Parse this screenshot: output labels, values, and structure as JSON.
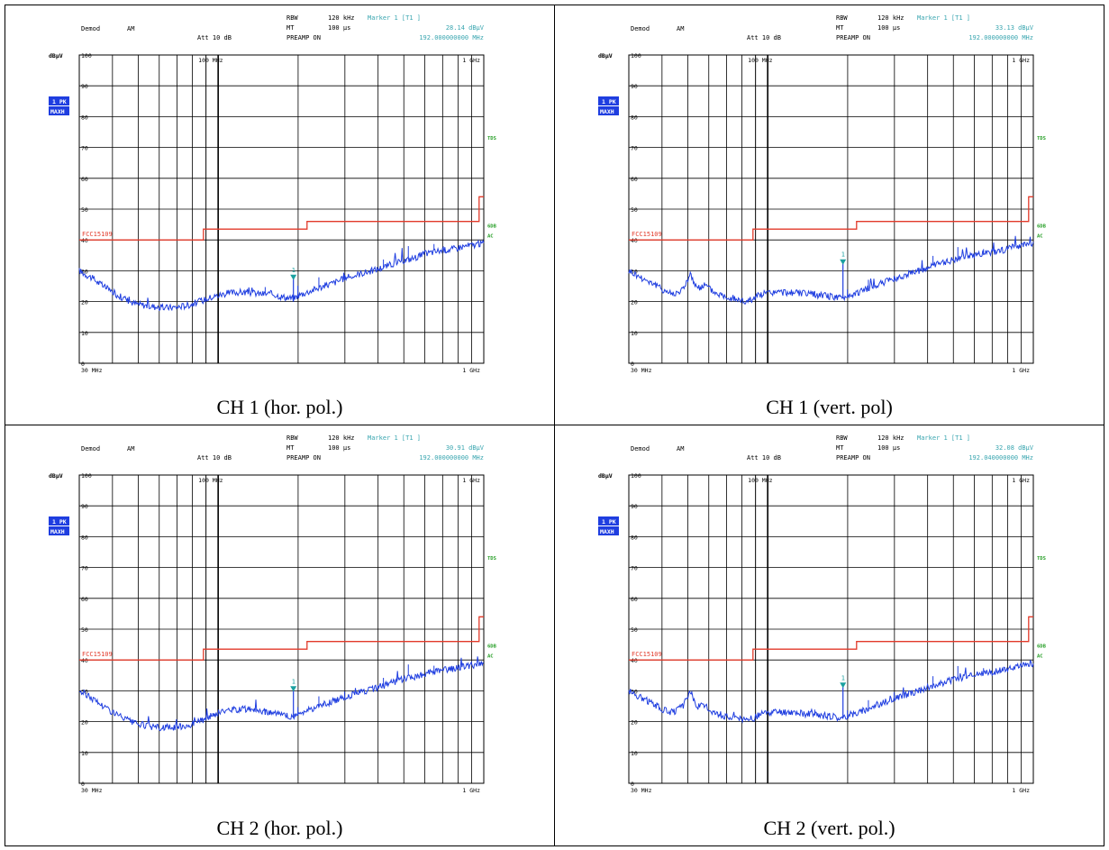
{
  "panels": [
    {
      "caption": "CH 1 (hor. pol.)",
      "header": {
        "demod": "Demod",
        "demod_val": "AM",
        "att": "Att 10 dB",
        "rbw": "RBW",
        "rbw_val": "120 kHz",
        "mt": "MT",
        "mt_val": "100 µs",
        "preamp": "PREAMP ON",
        "marker_title": "Marker 1 [T1 ]",
        "marker_level": "28.14 dBµV",
        "marker_freq": "192.000000000 MHz"
      },
      "unit": "dBµV",
      "trace_badge": "1 PK",
      "trace_mode": "MAXH",
      "limit_label": "FCC15109",
      "side_labels": [
        "TDS",
        "6DB",
        "AC"
      ],
      "x_start": "30 MHz",
      "x_end": "1 GHz",
      "x_mid_top": "100 MHz",
      "x_end_top": "1 GHz",
      "marker_label": "1"
    },
    {
      "caption": "CH 1 (vert. pol)",
      "header": {
        "demod": "Demod",
        "demod_val": "AM",
        "att": "Att 10 dB",
        "rbw": "RBW",
        "rbw_val": "120 kHz",
        "mt": "MT",
        "mt_val": "100 µs",
        "preamp": "PREAMP ON",
        "marker_title": "Marker 1 [T1 ]",
        "marker_level": "33.13 dBµV",
        "marker_freq": "192.000000000 MHz"
      },
      "unit": "dBµV",
      "trace_badge": "1 PK",
      "trace_mode": "MAXH",
      "limit_label": "FCC15109",
      "side_labels": [
        "TDS",
        "6DB",
        "AC"
      ],
      "x_start": "30 MHz",
      "x_end": "1 GHz",
      "x_mid_top": "100 MHz",
      "x_end_top": "1 GHz",
      "marker_label": "1"
    },
    {
      "caption": "CH 2 (hor. pol.)",
      "header": {
        "demod": "Demod",
        "demod_val": "AM",
        "att": "Att 10 dB",
        "rbw": "RBW",
        "rbw_val": "120 kHz",
        "mt": "MT",
        "mt_val": "100 µs",
        "preamp": "PREAMP ON",
        "marker_title": "Marker 1 [T1 ]",
        "marker_level": "30.91 dBµV",
        "marker_freq": "192.000000000 MHz"
      },
      "unit": "dBµV",
      "trace_badge": "1 PK",
      "trace_mode": "MAXH",
      "limit_label": "FCC15109",
      "side_labels": [
        "TDS",
        "6DB",
        "AC"
      ],
      "x_start": "30 MHz",
      "x_end": "1 GHz",
      "x_mid_top": "100 MHz",
      "x_end_top": "1 GHz",
      "marker_label": "1"
    },
    {
      "caption": "CH 2 (vert. pol.)",
      "header": {
        "demod": "Demod",
        "demod_val": "AM",
        "att": "Att 10 dB",
        "rbw": "RBW",
        "rbw_val": "120 kHz",
        "mt": "MT",
        "mt_val": "100 µs",
        "preamp": "PREAMP ON",
        "marker_title": "Marker 1 [T1 ]",
        "marker_level": "32.08 dBµV",
        "marker_freq": "192.040000000 MHz"
      },
      "unit": "dBµV",
      "trace_badge": "1 PK",
      "trace_mode": "MAXH",
      "limit_label": "FCC15109",
      "side_labels": [
        "TDS",
        "6DB",
        "AC"
      ],
      "x_start": "30 MHz",
      "x_end": "1 GHz",
      "x_mid_top": "100 MHz",
      "x_end_top": "1 GHz",
      "marker_label": "1"
    }
  ],
  "colors": {
    "trace": "#1f3ee0",
    "limit": "#e23a2a",
    "marker": "#1aa0a0",
    "header_value": "#3aa6b0",
    "side": "#2aa02a",
    "badge_bg": "#1f3ee0",
    "grid": "#000000"
  },
  "chart_data": [
    {
      "type": "line",
      "x_scale": "log",
      "xlim": [
        30,
        1000
      ],
      "ylim": [
        0,
        100
      ],
      "y_ticks": [
        0,
        10,
        20,
        30,
        40,
        50,
        60,
        70,
        80,
        90,
        100
      ],
      "limit_line": {
        "name": "FCC15109",
        "x": [
          30,
          88,
          88,
          216,
          216,
          960,
          960,
          1000
        ],
        "y": [
          40,
          40,
          43.5,
          43.5,
          46,
          46,
          54,
          54
        ]
      },
      "marker": {
        "x": 192,
        "y": 28.14
      },
      "series": [
        {
          "name": "1 PK MAXH",
          "x": [
            30,
            33,
            37,
            42,
            48,
            55,
            62,
            70,
            78,
            88,
            95,
            105,
            115,
            130,
            145,
            160,
            175,
            192,
            200,
            215,
            240,
            270,
            300,
            340,
            380,
            430,
            480,
            540,
            600,
            680,
            760,
            850,
            930,
            1000
          ],
          "y": [
            30,
            28,
            25,
            22,
            19.5,
            18.5,
            18,
            18.2,
            19,
            20.5,
            21.5,
            22.5,
            23,
            23,
            22.5,
            22.5,
            21.5,
            21,
            22,
            23,
            24.5,
            26,
            27.5,
            29,
            30,
            31.5,
            33,
            34,
            35.5,
            36.5,
            37,
            38,
            38.5,
            39
          ]
        }
      ]
    },
    {
      "type": "line",
      "x_scale": "log",
      "xlim": [
        30,
        1000
      ],
      "ylim": [
        0,
        100
      ],
      "y_ticks": [
        0,
        10,
        20,
        30,
        40,
        50,
        60,
        70,
        80,
        90,
        100
      ],
      "limit_line": {
        "name": "FCC15109",
        "x": [
          30,
          88,
          88,
          216,
          216,
          960,
          960,
          1000
        ],
        "y": [
          40,
          40,
          43.5,
          43.5,
          46,
          46,
          54,
          54
        ]
      },
      "marker": {
        "x": 192,
        "y": 33.13
      },
      "series": [
        {
          "name": "1 PK MAXH",
          "x": [
            30,
            33,
            37,
            40,
            44,
            48,
            51,
            54,
            58,
            63,
            68,
            75,
            82,
            88,
            95,
            105,
            120,
            140,
            160,
            180,
            192,
            200,
            220,
            250,
            290,
            340,
            400,
            470,
            550,
            640,
            740,
            850,
            1000
          ],
          "y": [
            30,
            28,
            26,
            24,
            22.5,
            24,
            29,
            24,
            25.5,
            23,
            22,
            21,
            20,
            21,
            22.5,
            23,
            23,
            22.5,
            22,
            21.5,
            21,
            22,
            23,
            25,
            27,
            29,
            31,
            33,
            34.5,
            35.5,
            36.5,
            37.5,
            39
          ]
        }
      ]
    },
    {
      "type": "line",
      "x_scale": "log",
      "xlim": [
        30,
        1000
      ],
      "ylim": [
        0,
        100
      ],
      "y_ticks": [
        0,
        10,
        20,
        30,
        40,
        50,
        60,
        70,
        80,
        90,
        100
      ],
      "limit_line": {
        "name": "FCC15109",
        "x": [
          30,
          88,
          88,
          216,
          216,
          960,
          960,
          1000
        ],
        "y": [
          40,
          40,
          43.5,
          43.5,
          46,
          46,
          54,
          54
        ]
      },
      "marker": {
        "x": 192,
        "y": 30.91
      },
      "series": [
        {
          "name": "1 PK MAXH",
          "x": [
            30,
            33,
            37,
            42,
            48,
            55,
            62,
            70,
            78,
            88,
            95,
            105,
            115,
            130,
            145,
            160,
            175,
            192,
            200,
            215,
            240,
            270,
            300,
            340,
            380,
            430,
            480,
            540,
            600,
            680,
            760,
            850,
            930,
            1000
          ],
          "y": [
            30,
            28,
            25,
            22,
            19.5,
            18.5,
            18,
            18.2,
            19,
            20.5,
            22,
            23.5,
            24,
            24,
            23.5,
            23,
            22,
            21.5,
            22.5,
            23.5,
            25,
            26.5,
            28,
            29.5,
            30.5,
            32,
            33.5,
            34.5,
            35.5,
            36.5,
            37,
            38,
            38.5,
            39
          ]
        }
      ]
    },
    {
      "type": "line",
      "x_scale": "log",
      "xlim": [
        30,
        1000
      ],
      "ylim": [
        0,
        100
      ],
      "y_ticks": [
        0,
        10,
        20,
        30,
        40,
        50,
        60,
        70,
        80,
        90,
        100
      ],
      "limit_line": {
        "name": "FCC15109",
        "x": [
          30,
          88,
          88,
          216,
          216,
          960,
          960,
          1000
        ],
        "y": [
          40,
          40,
          43.5,
          43.5,
          46,
          46,
          54,
          54
        ]
      },
      "marker": {
        "x": 192.04,
        "y": 32.08
      },
      "series": [
        {
          "name": "1 PK MAXH",
          "x": [
            30,
            33,
            37,
            40,
            44,
            48,
            51,
            54,
            58,
            63,
            68,
            75,
            82,
            88,
            95,
            105,
            120,
            140,
            160,
            180,
            192,
            200,
            220,
            250,
            290,
            340,
            400,
            470,
            550,
            640,
            740,
            850,
            1000
          ],
          "y": [
            30,
            28,
            26,
            24,
            23,
            25,
            30,
            25,
            25,
            23,
            22,
            21,
            20.5,
            21,
            22.5,
            23,
            23,
            22.5,
            22,
            21.5,
            21,
            22,
            23,
            25,
            27,
            29,
            31,
            33,
            34.5,
            35.5,
            36.5,
            37.5,
            39
          ]
        }
      ]
    }
  ]
}
